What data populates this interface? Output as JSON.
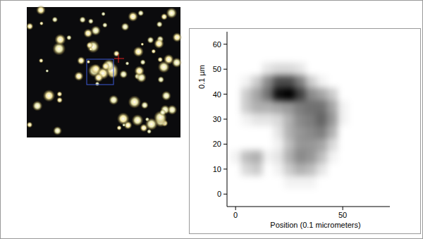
{
  "chart_data": {
    "type": "heatmap",
    "xlabel": "Position (0.1 micrometers)",
    "ylabel": "0.1 µm",
    "x": [
      0,
      5,
      10,
      15,
      20,
      25,
      30,
      35,
      40,
      45,
      50
    ],
    "y": [
      50,
      45,
      40,
      35,
      30,
      25,
      20,
      15,
      10,
      5
    ],
    "z": [
      [
        0,
        0,
        0,
        0.1,
        0.15,
        0.15,
        0.1,
        0,
        0,
        0,
        0
      ],
      [
        0,
        0.05,
        0.2,
        0.45,
        0.7,
        0.7,
        0.5,
        0.2,
        0.05,
        0,
        0
      ],
      [
        0,
        0.2,
        0.35,
        0.55,
        0.95,
        1,
        0.75,
        0.45,
        0.35,
        0.2,
        0
      ],
      [
        0,
        0.2,
        0.3,
        0.3,
        0.35,
        0.4,
        0.5,
        0.55,
        0.55,
        0.35,
        0.05
      ],
      [
        0,
        0.05,
        0.1,
        0.1,
        0.15,
        0.3,
        0.45,
        0.5,
        0.6,
        0.4,
        0.05
      ],
      [
        0,
        0,
        0,
        0,
        0.1,
        0.3,
        0.4,
        0.45,
        0.5,
        0.3,
        0
      ],
      [
        0,
        0,
        0,
        0,
        0.05,
        0.25,
        0.4,
        0.4,
        0.35,
        0.15,
        0
      ],
      [
        0.05,
        0.25,
        0.3,
        0.05,
        0.1,
        0.3,
        0.45,
        0.4,
        0.25,
        0.05,
        0
      ],
      [
        0,
        0.15,
        0.2,
        0,
        0.05,
        0.2,
        0.3,
        0.25,
        0.1,
        0,
        0
      ],
      [
        0,
        0,
        0,
        0,
        0,
        0.05,
        0.05,
        0.05,
        0,
        0,
        0
      ]
    ],
    "zlim": [
      0,
      1
    ],
    "color": "#000000",
    "xlim": [
      -4,
      72
    ],
    "ylim": [
      -5,
      65
    ],
    "xticks": [
      0,
      50
    ],
    "yticks": [
      0,
      10,
      20,
      30,
      40,
      50,
      60
    ]
  }
}
